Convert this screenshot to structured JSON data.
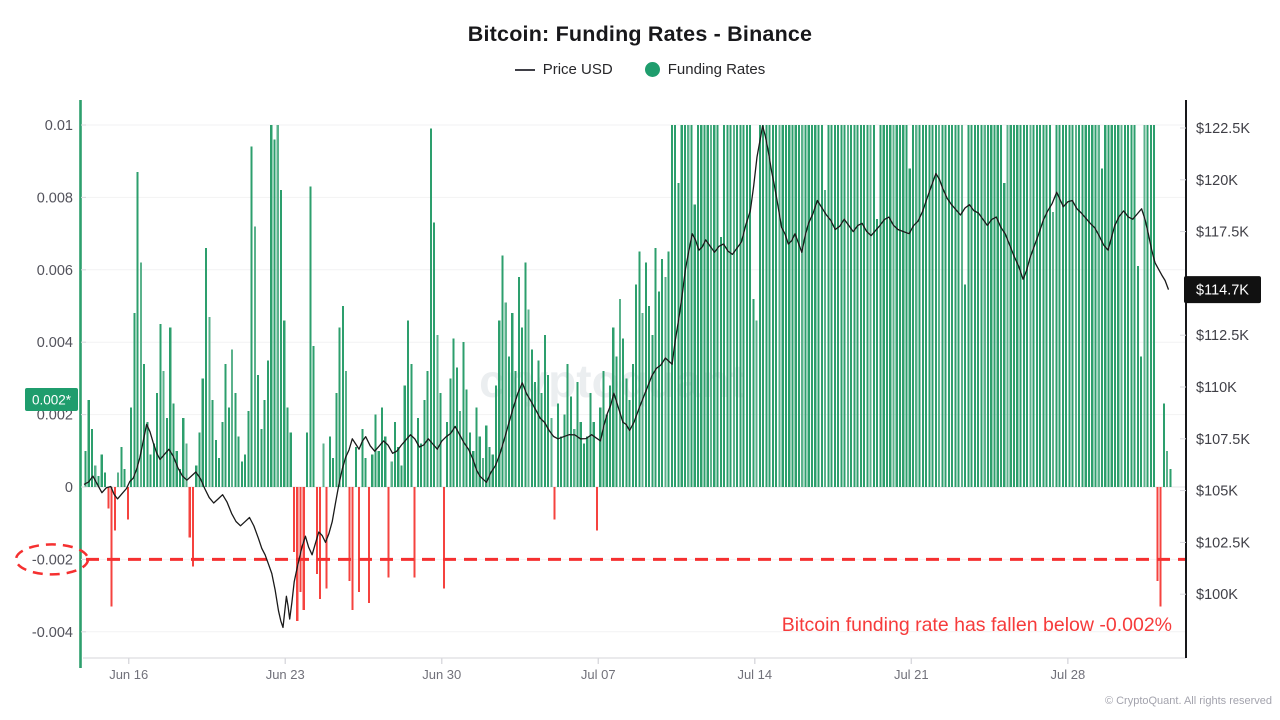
{
  "header": {
    "title": "Bitcoin: Funding Rates - Binance",
    "legend_price": "Price USD",
    "legend_funding": "Funding Rates"
  },
  "annotations": {
    "alert_text": "Bitcoin funding rate has fallen below -0.002%",
    "left_badge": "0.002*",
    "price_badge": "$114.7K",
    "watermark": "cryptoquant",
    "copyright": "© CryptoQuant. All rights reserved"
  },
  "colors": {
    "bar_green": "#2d9f6d",
    "bar_green_light": "#5bb28c",
    "bar_red": "#f5433f",
    "threshold_red": "#f53030",
    "alert_red": "#f63b3b",
    "price_line": "#1a1a1a",
    "axis_green": "#2d9f6d",
    "axis_black": "#18181b",
    "grid": "#f2f2f3",
    "grid_zero": "#e4e4e7",
    "tick_stub": "#d9d9de",
    "axis_bottom": "#e3e3e6",
    "left_tick_text": "#52525b",
    "right_tick_text": "#3f3f46",
    "x_tick_text": "#71717a",
    "badge_green_bg": "#1f9d6d",
    "badge_black_bg": "#111111"
  },
  "chart_data": {
    "type": "bar+line",
    "title": "Bitcoin: Funding Rates - Binance",
    "funding_ticks": [
      {
        "label": "0.01",
        "value": 0.01
      },
      {
        "label": "0.008",
        "value": 0.008
      },
      {
        "label": "0.006",
        "value": 0.006
      },
      {
        "label": "0.004",
        "value": 0.004
      },
      {
        "label": "0.002",
        "value": 0.002
      },
      {
        "label": "0",
        "value": 0
      },
      {
        "label": "-0.002",
        "value": -0.002
      },
      {
        "label": "-0.004",
        "value": -0.004
      }
    ],
    "price_ticks": [
      {
        "label": "$122.5K",
        "value": 122.5
      },
      {
        "label": "$120K",
        "value": 120
      },
      {
        "label": "$117.5K",
        "value": 117.5
      },
      {
        "label": "$112.5K",
        "value": 112.5
      },
      {
        "label": "$110K",
        "value": 110
      },
      {
        "label": "$107.5K",
        "value": 107.5
      },
      {
        "label": "$105K",
        "value": 105
      },
      {
        "label": "$102.5K",
        "value": 102.5
      },
      {
        "label": "$100K",
        "value": 100
      }
    ],
    "x_ticks": [
      {
        "label": "Jun 16",
        "day": 2
      },
      {
        "label": "Jun 23",
        "day": 9
      },
      {
        "label": "Jun 30",
        "day": 16
      },
      {
        "label": "Jul 07",
        "day": 23
      },
      {
        "label": "Jul 14",
        "day": 30
      },
      {
        "label": "Jul 21",
        "day": 37
      },
      {
        "label": "Jul 28",
        "day": 44
      }
    ],
    "threshold": {
      "value": -0.002,
      "label": "-0.002"
    },
    "last_price_label": "$114.7K",
    "last_price_value": 114.7,
    "series": [
      {
        "name": "Funding Rates",
        "type": "bar",
        "unit_scale": 0.001,
        "values": [
          1.0,
          2.4,
          1.6,
          0.6,
          0.3,
          0.9,
          0.4,
          -0.6,
          -3.3,
          -1.2,
          0.4,
          1.1,
          0.5,
          -0.9,
          2.2,
          4.8,
          8.7,
          6.2,
          3.4,
          1.8,
          0.9,
          1.2,
          2.6,
          4.5,
          3.2,
          1.9,
          4.4,
          2.3,
          1.0,
          0.5,
          1.9,
          1.2,
          -1.4,
          -2.2,
          0.6,
          1.5,
          3.0,
          6.6,
          4.7,
          2.4,
          1.3,
          0.8,
          1.8,
          3.4,
          2.2,
          3.8,
          2.6,
          1.4,
          0.7,
          0.9,
          2.1,
          9.4,
          7.2,
          3.1,
          1.6,
          2.4,
          3.5,
          10,
          9.6,
          10,
          8.2,
          4.6,
          2.2,
          1.5,
          -1.8,
          -3.7,
          -2.9,
          -3.4,
          1.5,
          8.3,
          3.9,
          -2.4,
          -3.1,
          1.2,
          -2.8,
          1.4,
          0.8,
          2.6,
          4.4,
          5.0,
          3.2,
          -2.6,
          -3.4,
          1.1,
          -2.9,
          1.6,
          0.8,
          -3.2,
          0.9,
          2.0,
          1.0,
          2.2,
          1.4,
          -2.5,
          0.7,
          1.8,
          1.1,
          0.6,
          2.8,
          4.6,
          3.4,
          -2.5,
          1.9,
          1.2,
          2.4,
          3.2,
          9.9,
          7.3,
          4.2,
          2.6,
          -2.8,
          1.8,
          3.0,
          4.1,
          3.3,
          2.1,
          4.0,
          2.7,
          1.5,
          1.0,
          2.2,
          1.4,
          0.8,
          1.7,
          1.1,
          0.9,
          2.8,
          4.6,
          6.4,
          5.1,
          3.6,
          4.8,
          3.2,
          5.8,
          4.4,
          6.2,
          4.9,
          3.8,
          2.9,
          3.5,
          2.6,
          4.2,
          3.1,
          1.9,
          -0.9,
          2.3,
          1.4,
          2.0,
          3.4,
          2.5,
          1.6,
          2.9,
          1.8,
          1.2,
          1.4,
          2.6,
          1.8,
          -1.2,
          2.2,
          3.2,
          2.0,
          2.8,
          4.4,
          3.6,
          5.2,
          4.1,
          3.0,
          2.4,
          3.4,
          5.6,
          6.5,
          4.8,
          6.2,
          5.0,
          4.2,
          6.6,
          5.4,
          6.3,
          5.8,
          6.5,
          10,
          10,
          8.4,
          10,
          10,
          10,
          10,
          7.8,
          10,
          10,
          10,
          10,
          10,
          10,
          10,
          6.9,
          10,
          10,
          10,
          10,
          10,
          10,
          10,
          10,
          10,
          5.2,
          4.6,
          10,
          10,
          10,
          10,
          10,
          10,
          10,
          10,
          10,
          10,
          10,
          10,
          10,
          10,
          10,
          10,
          10,
          10,
          10,
          10,
          8.2,
          10,
          10,
          10,
          10,
          10,
          10,
          10,
          10,
          10,
          10,
          10,
          10,
          10,
          10,
          10,
          7.4,
          10,
          10,
          10,
          10,
          10,
          10,
          10,
          10,
          10,
          8.8,
          10,
          10,
          10,
          10,
          10,
          10,
          10,
          10,
          10,
          10,
          10,
          10,
          10,
          10,
          10,
          10,
          5.6,
          10,
          10,
          10,
          10,
          10,
          10,
          10,
          10,
          10,
          10,
          10,
          8.4,
          10,
          10,
          10,
          10,
          10,
          10,
          10,
          10,
          10,
          10,
          10,
          10,
          10,
          10,
          7.6,
          10,
          10,
          10,
          10,
          10,
          10,
          10,
          10,
          10,
          10,
          10,
          10,
          10,
          10,
          8.8,
          10,
          10,
          10,
          10,
          10,
          10,
          10,
          10,
          10,
          10,
          6.1,
          3.6,
          10,
          10,
          10,
          10,
          -2.6,
          -3.3,
          2.3,
          1.0,
          0.5
        ]
      },
      {
        "name": "Price USD",
        "type": "line",
        "unit": "USD thousands",
        "points": [
          [
            0,
            105.3
          ],
          [
            0.4,
            105.7
          ],
          [
            0.8,
            104.9
          ],
          [
            1.2,
            105.2
          ],
          [
            1.5,
            104.6
          ],
          [
            1.9,
            105.1
          ],
          [
            2.2,
            105.6
          ],
          [
            2.5,
            106.6
          ],
          [
            2.8,
            108.2
          ],
          [
            3.1,
            107.3
          ],
          [
            3.4,
            106.5
          ],
          [
            3.8,
            107.0
          ],
          [
            4.2,
            106.1
          ],
          [
            4.6,
            105.5
          ],
          [
            5.0,
            105.9
          ],
          [
            5.4,
            105.1
          ],
          [
            5.8,
            104.4
          ],
          [
            6.2,
            104.8
          ],
          [
            6.6,
            103.9
          ],
          [
            7.0,
            103.3
          ],
          [
            7.4,
            103.7
          ],
          [
            7.8,
            102.7
          ],
          [
            8.1,
            101.9
          ],
          [
            8.4,
            101.0
          ],
          [
            8.7,
            99.2
          ],
          [
            8.9,
            98.4
          ],
          [
            9.05,
            99.9
          ],
          [
            9.2,
            98.8
          ],
          [
            9.4,
            100.6
          ],
          [
            9.6,
            101.6
          ],
          [
            9.9,
            102.8
          ],
          [
            10.2,
            101.9
          ],
          [
            10.5,
            103.0
          ],
          [
            10.8,
            102.5
          ],
          [
            11.1,
            103.5
          ],
          [
            11.4,
            105.3
          ],
          [
            11.7,
            106.6
          ],
          [
            12.0,
            107.5
          ],
          [
            12.3,
            107.0
          ],
          [
            12.6,
            107.6
          ],
          [
            13.0,
            106.9
          ],
          [
            13.4,
            107.4
          ],
          [
            13.8,
            106.8
          ],
          [
            14.2,
            107.2
          ],
          [
            14.6,
            107.7
          ],
          [
            15.0,
            107.1
          ],
          [
            15.4,
            107.5
          ],
          [
            15.8,
            107.0
          ],
          [
            16.2,
            107.6
          ],
          [
            16.6,
            108.1
          ],
          [
            17.0,
            107.3
          ],
          [
            17.4,
            106.5
          ],
          [
            17.7,
            105.7
          ],
          [
            18.0,
            105.4
          ],
          [
            18.4,
            106.2
          ],
          [
            18.8,
            107.5
          ],
          [
            19.2,
            109.0
          ],
          [
            19.6,
            110.2
          ],
          [
            20.0,
            109.3
          ],
          [
            20.4,
            108.5
          ],
          [
            20.8,
            107.9
          ],
          [
            21.2,
            107.5
          ],
          [
            21.7,
            107.7
          ],
          [
            22.2,
            107.5
          ],
          [
            22.7,
            107.7
          ],
          [
            23.1,
            107.4
          ],
          [
            23.4,
            108.7
          ],
          [
            23.7,
            109.7
          ],
          [
            24.1,
            108.3
          ],
          [
            24.4,
            107.9
          ],
          [
            24.8,
            108.9
          ],
          [
            25.2,
            110.0
          ],
          [
            25.6,
            110.9
          ],
          [
            26.0,
            111.4
          ],
          [
            26.3,
            111.1
          ],
          [
            26.6,
            113.3
          ],
          [
            26.9,
            115.7
          ],
          [
            27.2,
            117.4
          ],
          [
            27.5,
            116.6
          ],
          [
            27.8,
            117.1
          ],
          [
            28.2,
            116.5
          ],
          [
            28.6,
            116.9
          ],
          [
            29.0,
            116.4
          ],
          [
            29.4,
            117.0
          ],
          [
            29.8,
            118.5
          ],
          [
            30.1,
            121.1
          ],
          [
            30.35,
            122.6
          ],
          [
            30.6,
            121.4
          ],
          [
            30.9,
            119.6
          ],
          [
            31.2,
            117.7
          ],
          [
            31.5,
            116.9
          ],
          [
            31.8,
            117.4
          ],
          [
            32.1,
            116.5
          ],
          [
            32.4,
            117.9
          ],
          [
            32.8,
            119.0
          ],
          [
            33.2,
            118.3
          ],
          [
            33.6,
            117.6
          ],
          [
            34.0,
            118.1
          ],
          [
            34.4,
            117.5
          ],
          [
            34.8,
            117.9
          ],
          [
            35.2,
            117.3
          ],
          [
            35.6,
            117.8
          ],
          [
            36.0,
            118.2
          ],
          [
            36.4,
            117.6
          ],
          [
            36.9,
            117.4
          ],
          [
            37.3,
            118.0
          ],
          [
            37.7,
            119.1
          ],
          [
            38.1,
            120.3
          ],
          [
            38.4,
            119.6
          ],
          [
            38.8,
            118.8
          ],
          [
            39.2,
            118.3
          ],
          [
            39.6,
            118.8
          ],
          [
            40.0,
            118.4
          ],
          [
            40.4,
            117.8
          ],
          [
            40.8,
            118.2
          ],
          [
            41.2,
            117.4
          ],
          [
            41.6,
            116.3
          ],
          [
            42.0,
            115.2
          ],
          [
            42.3,
            116.2
          ],
          [
            42.7,
            117.4
          ],
          [
            43.1,
            118.5
          ],
          [
            43.5,
            119.4
          ],
          [
            43.8,
            118.7
          ],
          [
            44.2,
            119.0
          ],
          [
            44.6,
            118.4
          ],
          [
            45.0,
            117.9
          ],
          [
            45.4,
            117.3
          ],
          [
            45.8,
            116.6
          ],
          [
            46.1,
            117.8
          ],
          [
            46.5,
            118.5
          ],
          [
            46.9,
            118.1
          ],
          [
            47.3,
            118.6
          ],
          [
            47.6,
            117.4
          ],
          [
            47.9,
            116.0
          ],
          [
            48.2,
            115.4
          ],
          [
            48.5,
            114.7
          ]
        ]
      }
    ]
  }
}
